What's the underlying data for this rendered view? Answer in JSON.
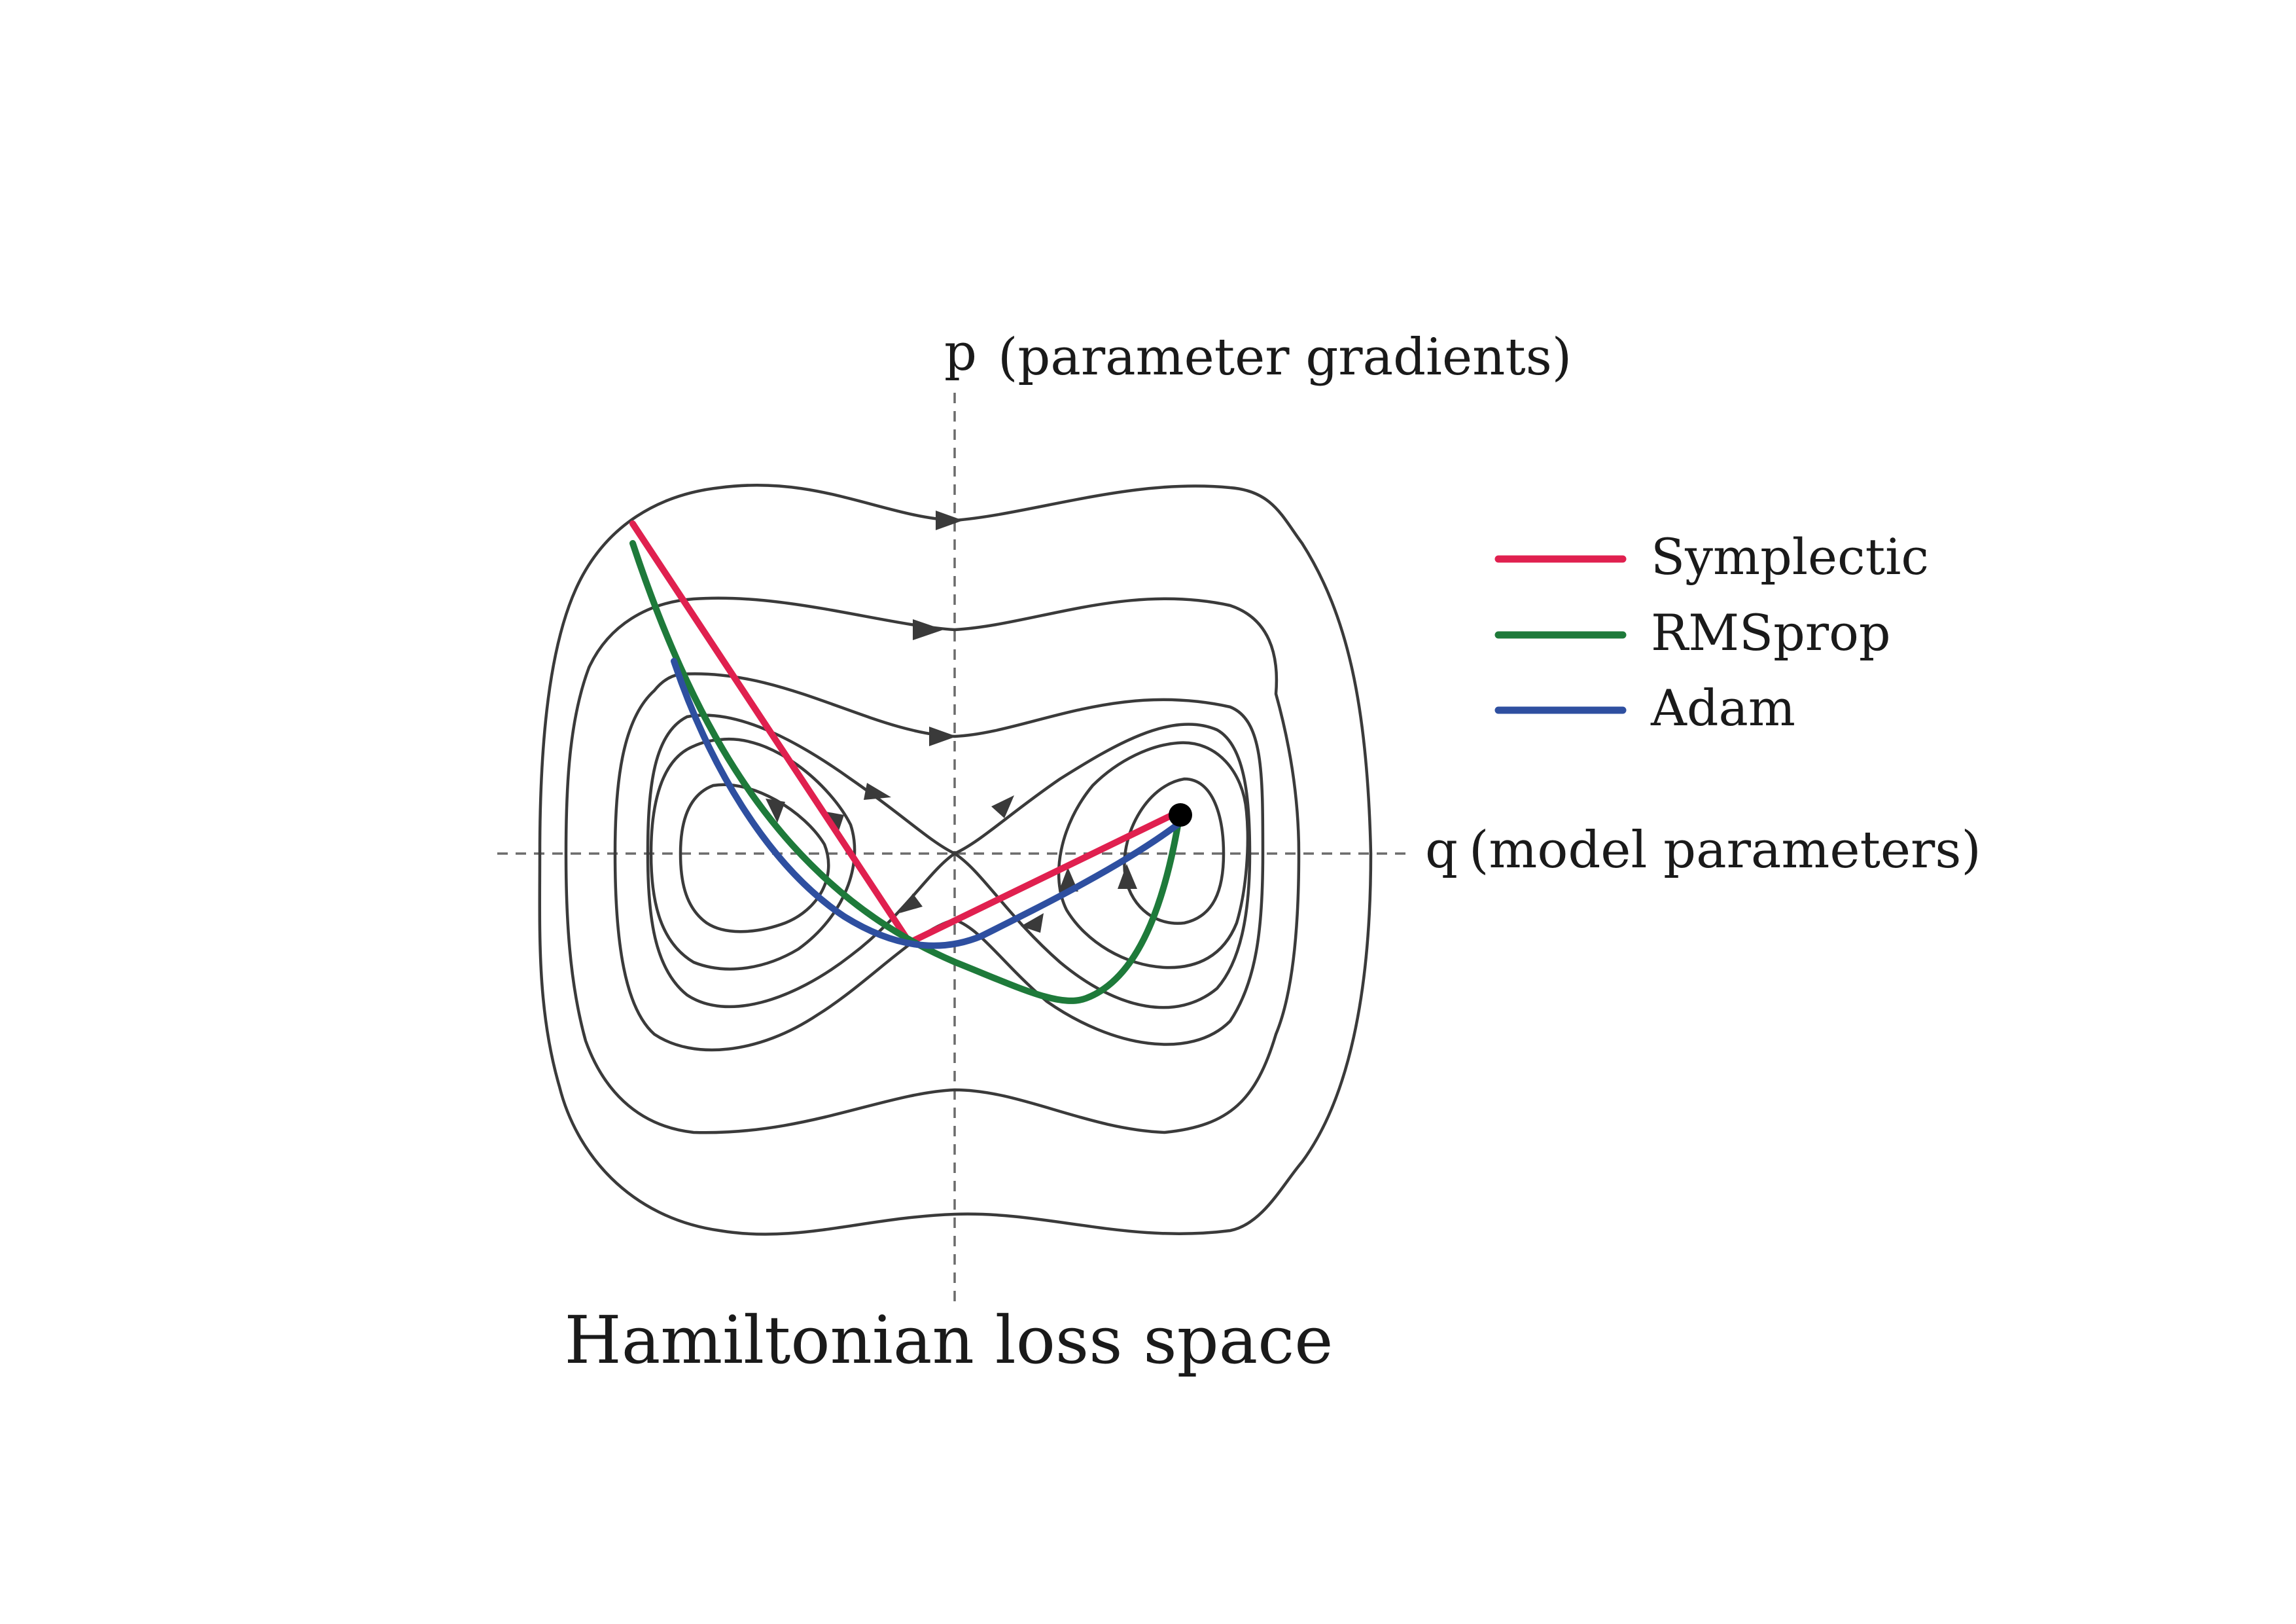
{
  "axes": {
    "p": {
      "letter": "p",
      "description": "(parameter gradients)"
    },
    "q": {
      "letter": "q",
      "description": "(model parameters)"
    }
  },
  "legend": [
    {
      "key": "symplectic",
      "label": "Symplectic",
      "color": "#e0204f"
    },
    {
      "key": "rmsprop",
      "label": "RMSprop",
      "color": "#1e7a3a"
    },
    {
      "key": "adam",
      "label": "Adam",
      "color": "#2e4fa0"
    }
  ],
  "caption": "Hamiltonian loss space",
  "colors": {
    "contour": "#3a3a3a",
    "axis": "#6b6b6b",
    "endpoint": "#000000"
  }
}
